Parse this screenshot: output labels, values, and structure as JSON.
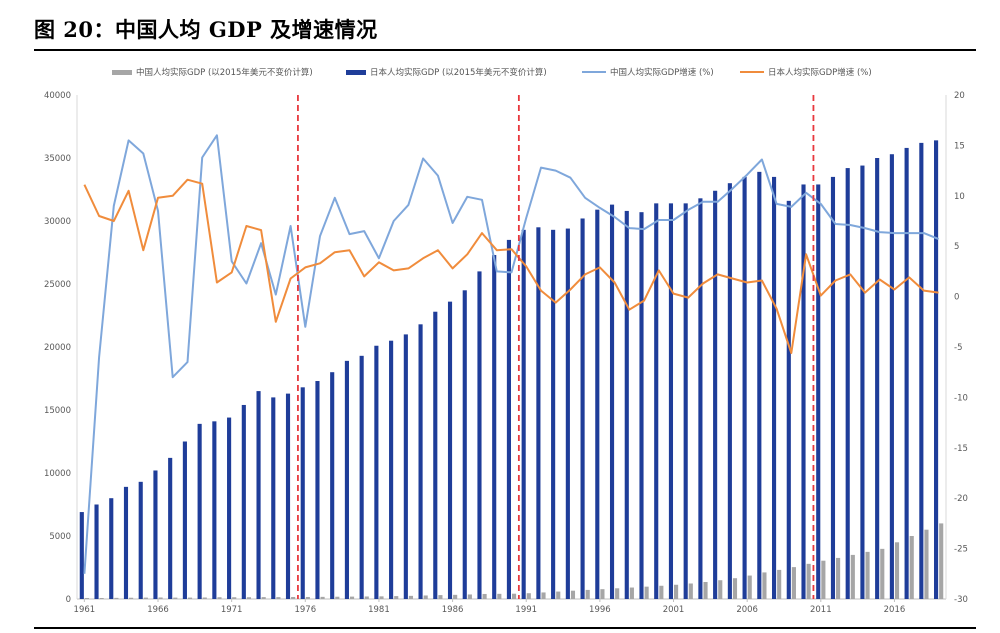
{
  "figure": {
    "title": "图 20：中国人均 GDP 及增速情况"
  },
  "colors": {
    "china_bar": "#a6a6a6",
    "japan_bar": "#1f3d99",
    "china_line": "#7fa7db",
    "japan_line": "#f08c3c",
    "marker": "#e8383d"
  },
  "chart_data": {
    "type": "bar+line",
    "x": [
      1961,
      1962,
      1963,
      1964,
      1965,
      1966,
      1967,
      1968,
      1969,
      1970,
      1971,
      1972,
      1973,
      1974,
      1975,
      1976,
      1977,
      1978,
      1979,
      1980,
      1981,
      1982,
      1983,
      1984,
      1985,
      1986,
      1987,
      1988,
      1989,
      1990,
      1991,
      1992,
      1993,
      1994,
      1995,
      1996,
      1997,
      1998,
      1999,
      2000,
      2001,
      2002,
      2003,
      2004,
      2005,
      2006,
      2007,
      2008,
      2009,
      2010,
      2011,
      2012,
      2013,
      2014,
      2015,
      2016,
      2017,
      2018,
      2019
    ],
    "xticks": [
      "1961",
      "1966",
      "1971",
      "1976",
      "1981",
      "1986",
      "1991",
      "1996",
      "2001",
      "2006",
      "2011",
      "2016"
    ],
    "y_left": {
      "lim": [
        0,
        40000
      ],
      "ticks": [
        "0",
        "5000",
        "10000",
        "15000",
        "20000",
        "25000",
        "30000",
        "35000",
        "40000"
      ]
    },
    "y_right": {
      "lim": [
        -30,
        20
      ],
      "ticks": [
        "-30",
        "-25",
        "-20",
        "-15",
        "-10",
        "-5",
        "0",
        "5",
        "10",
        "15",
        "20"
      ]
    },
    "series": [
      {
        "name": "中国人均实际GDP (以2015年美元不变价计算)",
        "type": "bar",
        "axis": "left",
        "values": [
          80,
          80,
          90,
          100,
          110,
          120,
          110,
          110,
          120,
          140,
          140,
          140,
          150,
          150,
          160,
          160,
          170,
          180,
          190,
          200,
          210,
          230,
          250,
          280,
          310,
          330,
          360,
          400,
          410,
          420,
          460,
          520,
          590,
          660,
          720,
          780,
          850,
          910,
          980,
          1050,
          1130,
          1230,
          1350,
          1490,
          1650,
          1860,
          2110,
          2310,
          2530,
          2790,
          3040,
          3260,
          3500,
          3740,
          3980,
          4500,
          5000,
          5500,
          6000
        ]
      },
      {
        "name": "日本人均实际GDP (以2015年美元不变价计算)",
        "type": "bar",
        "axis": "left",
        "values": [
          6900,
          7500,
          8000,
          8900,
          9300,
          10200,
          11200,
          12500,
          13900,
          14100,
          14400,
          15400,
          16500,
          16000,
          16300,
          16800,
          17300,
          18000,
          18900,
          19300,
          20100,
          20500,
          21000,
          21800,
          22800,
          23600,
          24500,
          26000,
          27300,
          28500,
          29300,
          29500,
          29300,
          29400,
          30200,
          30900,
          31300,
          30800,
          30700,
          31400,
          31400,
          31400,
          31800,
          32400,
          33000,
          33500,
          33900,
          33500,
          31600,
          32900,
          32900,
          33500,
          34200,
          34400,
          35000,
          35300,
          35800,
          36200,
          36400
        ]
      },
      {
        "name": "中国人均实际GDP增速 (%)",
        "type": "line",
        "axis": "right",
        "values": [
          -27.5,
          -6,
          9,
          15.5,
          14.2,
          8.5,
          -8,
          -6.5,
          13.8,
          16,
          3.5,
          1.3,
          5.3,
          0.2,
          7,
          -3,
          6,
          9.8,
          6.2,
          6.5,
          3.8,
          7.5,
          9.1,
          13.7,
          12,
          7.3,
          9.9,
          9.6,
          2.5,
          2.4,
          7.8,
          12.8,
          12.5,
          11.8,
          9.8,
          8.8,
          7.9,
          6.8,
          6.7,
          7.6,
          7.6,
          8.6,
          9.4,
          9.4,
          10.7,
          12.1,
          13.6,
          9.2,
          8.9,
          10.3,
          9.2,
          7.2,
          7.1,
          6.8,
          6.4,
          6.3,
          6.3,
          6.3,
          5.7
        ]
      },
      {
        "name": "日本人均实际GDP增速 (%)",
        "type": "line",
        "axis": "right",
        "values": [
          11.1,
          8,
          7.5,
          10.5,
          4.6,
          9.8,
          10,
          11.6,
          11.2,
          1.4,
          2.4,
          7,
          6.6,
          -2.5,
          1.8,
          2.9,
          3.3,
          4.4,
          4.6,
          2,
          3.4,
          2.6,
          2.8,
          3.8,
          4.6,
          2.8,
          4.2,
          6.3,
          4.6,
          4.7,
          3,
          0.6,
          -0.6,
          0.7,
          2.2,
          2.9,
          1.4,
          -1.3,
          -0.4,
          2.6,
          0.3,
          -0.1,
          1.3,
          2.2,
          1.8,
          1.4,
          1.6,
          -1.2,
          -5.6,
          4.2,
          0.1,
          1.6,
          2.2,
          0.4,
          1.7,
          0.7,
          1.9,
          0.6,
          0.4
        ]
      }
    ],
    "vertical_markers": [
      1975.5,
      1990.5,
      2010.5
    ]
  }
}
